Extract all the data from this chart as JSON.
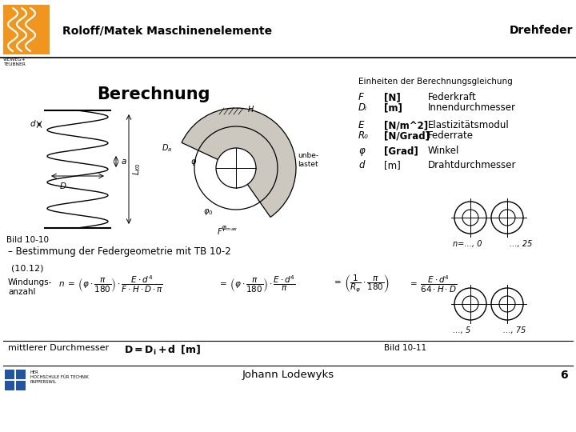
{
  "title_left": "Roloff/Matek Maschinenelemente",
  "title_right": "Drehfeder",
  "heading": "Berechnung",
  "bild_label": "Bild 10-10",
  "subtitle": "– Bestimmung der Federgeometrie mit TB 10-2",
  "formula_num": "(10.12)",
  "windungsanzahl_label": "Windungs-\nanzahl",
  "footer_name": "Johann Lodewyks",
  "footer_page": "6",
  "bild_11_label": "Bild 10-11",
  "n_range1": "n=…, 0           …, 25",
  "n_range2": "…, 5             …, 75",
  "einheiten_title": "Einheiten der Berechnungsgleichung",
  "einheiten": [
    {
      "sym": "F",
      "unit": "[N]",
      "desc": "Federkraft",
      "bold_unit": true
    },
    {
      "sym": "Dᵢ",
      "unit": "[m]",
      "desc": "Innendurchmesser",
      "bold_unit": true
    },
    {
      "sym": "E",
      "unit": "[N/m^2]",
      "desc": "Elastizitätsmodul",
      "bold_unit": true
    },
    {
      "sym": "R₀",
      "unit": "[N/Grad]",
      "desc": "Federrate",
      "bold_unit": true
    },
    {
      "sym": "φ",
      "unit": "[Grad]",
      "desc": "Winkel",
      "bold_unit": true
    },
    {
      "sym": "d",
      "unit": "[m]",
      "desc": "Drahtdurchmesser",
      "bold_unit": false
    }
  ],
  "mittlerer_label": "mittlerer Durchmesser",
  "bg_color": "#ffffff",
  "orange_color": "#f0961e",
  "blue_color": "#2255a0",
  "text_color": "#000000"
}
